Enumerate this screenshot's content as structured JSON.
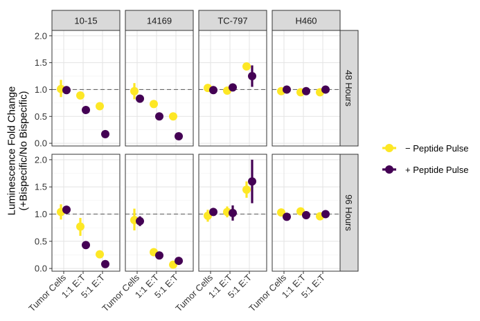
{
  "chart_data": {
    "type": "scatter",
    "y_axis_title": [
      "Luminescence Fold Change",
      "(+Bispecific/No Bispecific)"
    ],
    "ylim": [
      -0.05,
      2.1
    ],
    "y_ticks": [
      "0.0",
      "0.5",
      "1.0",
      "1.5",
      "2.0"
    ],
    "y_tick_values": [
      0.0,
      0.5,
      1.0,
      1.5,
      2.0
    ],
    "reference_line": 1.0,
    "columns": [
      "10-15",
      "14169",
      "TC-797",
      "H460"
    ],
    "rows": [
      "48 Hours",
      "96 Hours"
    ],
    "categories": [
      "Tumor Cells",
      "1:1 E:T",
      "5:1 E:T"
    ],
    "legend": [
      {
        "name": "− Peptide Pulse",
        "color": "#fde725"
      },
      {
        "name": "+ Peptide Pulse",
        "color": "#440154"
      }
    ],
    "series_colors": {
      "minus": "#fde725",
      "plus": "#440154"
    },
    "panels": [
      {
        "row": "48 Hours",
        "col": "10-15",
        "minus": [
          {
            "y": 1.01,
            "lo": 0.86,
            "hi": 1.18
          },
          {
            "y": 0.89,
            "lo": 0.82,
            "hi": 0.96
          },
          {
            "y": 0.69,
            "lo": 0.65,
            "hi": 0.73
          }
        ],
        "plus": [
          {
            "y": 0.99,
            "lo": 0.96,
            "hi": 1.02
          },
          {
            "y": 0.62,
            "lo": 0.6,
            "hi": 0.65
          },
          {
            "y": 0.17,
            "lo": 0.14,
            "hi": 0.2
          }
        ]
      },
      {
        "row": "48 Hours",
        "col": "14169",
        "minus": [
          {
            "y": 0.97,
            "lo": 0.82,
            "hi": 1.12
          },
          {
            "y": 0.73,
            "lo": 0.7,
            "hi": 0.76
          },
          {
            "y": 0.5,
            "lo": 0.45,
            "hi": 0.55
          }
        ],
        "plus": [
          {
            "y": 0.83,
            "lo": 0.8,
            "hi": 0.86
          },
          {
            "y": 0.5,
            "lo": 0.47,
            "hi": 0.53
          },
          {
            "y": 0.13,
            "lo": 0.11,
            "hi": 0.16
          }
        ]
      },
      {
        "row": "48 Hours",
        "col": "TC-797",
        "minus": [
          {
            "y": 1.03,
            "lo": 0.98,
            "hi": 1.08
          },
          {
            "y": 0.98,
            "lo": 0.92,
            "hi": 1.04
          },
          {
            "y": 1.43,
            "lo": 1.39,
            "hi": 1.47
          }
        ],
        "plus": [
          {
            "y": 0.99,
            "lo": 0.96,
            "hi": 1.02
          },
          {
            "y": 1.04,
            "lo": 1.0,
            "hi": 1.08
          },
          {
            "y": 1.25,
            "lo": 1.05,
            "hi": 1.45
          }
        ]
      },
      {
        "row": "48 Hours",
        "col": "H460",
        "minus": [
          {
            "y": 0.97,
            "lo": 0.93,
            "hi": 1.01
          },
          {
            "y": 0.95,
            "lo": 0.92,
            "hi": 0.99
          },
          {
            "y": 0.95,
            "lo": 0.92,
            "hi": 0.98
          }
        ],
        "plus": [
          {
            "y": 1.0,
            "lo": 0.97,
            "hi": 1.03
          },
          {
            "y": 0.97,
            "lo": 0.94,
            "hi": 1.0
          },
          {
            "y": 1.0,
            "lo": 0.97,
            "hi": 1.03
          }
        ]
      },
      {
        "row": "96 Hours",
        "col": "10-15",
        "minus": [
          {
            "y": 1.04,
            "lo": 0.9,
            "hi": 1.18
          },
          {
            "y": 0.77,
            "lo": 0.6,
            "hi": 0.93
          },
          {
            "y": 0.26,
            "lo": 0.22,
            "hi": 0.3
          }
        ],
        "plus": [
          {
            "y": 1.08,
            "lo": 1.04,
            "hi": 1.12
          },
          {
            "y": 0.43,
            "lo": 0.4,
            "hi": 0.46
          },
          {
            "y": 0.08,
            "lo": 0.05,
            "hi": 0.11
          }
        ]
      },
      {
        "row": "96 Hours",
        "col": "14169",
        "minus": [
          {
            "y": 0.89,
            "lo": 0.7,
            "hi": 1.1
          },
          {
            "y": 0.3,
            "lo": 0.27,
            "hi": 0.33
          },
          {
            "y": 0.07,
            "lo": 0.05,
            "hi": 0.09
          }
        ],
        "plus": [
          {
            "y": 0.87,
            "lo": 0.78,
            "hi": 0.96
          },
          {
            "y": 0.24,
            "lo": 0.21,
            "hi": 0.27
          },
          {
            "y": 0.14,
            "lo": 0.11,
            "hi": 0.17
          }
        ]
      },
      {
        "row": "96 Hours",
        "col": "TC-797",
        "minus": [
          {
            "y": 0.97,
            "lo": 0.86,
            "hi": 1.08
          },
          {
            "y": 1.04,
            "lo": 0.94,
            "hi": 1.14
          },
          {
            "y": 1.45,
            "lo": 1.3,
            "hi": 1.6
          }
        ],
        "plus": [
          {
            "y": 1.04,
            "lo": 1.0,
            "hi": 1.08
          },
          {
            "y": 1.02,
            "lo": 0.88,
            "hi": 1.16
          },
          {
            "y": 1.6,
            "lo": 1.2,
            "hi": 2.0
          }
        ]
      },
      {
        "row": "96 Hours",
        "col": "H460",
        "minus": [
          {
            "y": 1.03,
            "lo": 0.99,
            "hi": 1.07
          },
          {
            "y": 1.05,
            "lo": 1.01,
            "hi": 1.09
          },
          {
            "y": 0.96,
            "lo": 0.92,
            "hi": 1.0
          }
        ],
        "plus": [
          {
            "y": 0.95,
            "lo": 0.89,
            "hi": 1.01
          },
          {
            "y": 0.98,
            "lo": 0.94,
            "hi": 1.02
          },
          {
            "y": 1.0,
            "lo": 0.96,
            "hi": 1.04
          }
        ]
      }
    ]
  }
}
